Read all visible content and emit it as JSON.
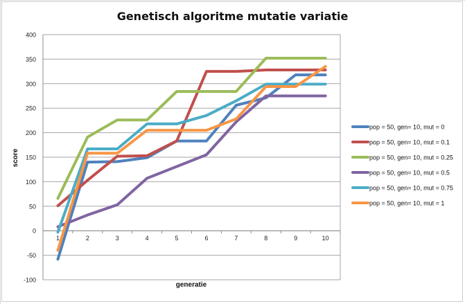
{
  "chart_data": {
    "type": "line",
    "title": "Genetisch algoritme mutatie variatie",
    "xlabel": "generatie",
    "ylabel": "score",
    "x": [
      "1",
      "2",
      "3",
      "4",
      "5",
      "6",
      "7",
      "8",
      "9",
      "10"
    ],
    "ylim": [
      -100,
      400
    ],
    "yticks": [
      -100,
      -50,
      0,
      50,
      100,
      150,
      200,
      250,
      300,
      350,
      400
    ],
    "grid": true,
    "legend_position": "right",
    "series": [
      {
        "name": "pop = 50, gen= 10, mut = 0",
        "color": "#4f81bd",
        "values": [
          -58,
          140,
          141,
          149,
          183,
          183,
          256,
          271,
          318,
          318
        ]
      },
      {
        "name": "pop = 50, gen= 10, mut = 0.1",
        "color": "#c0504d",
        "values": [
          51,
          103,
          152,
          153,
          183,
          325,
          325,
          328,
          328,
          328
        ]
      },
      {
        "name": "pop = 50, gen= 10, mut = 0.25",
        "color": "#9bbb59",
        "values": [
          66,
          191,
          226,
          226,
          284,
          284,
          284,
          352,
          352,
          352
        ]
      },
      {
        "name": "pop = 50, gen= 10, mut = 0.5",
        "color": "#8064a2",
        "values": [
          8,
          32,
          53,
          107,
          131,
          155,
          222,
          275,
          275,
          275
        ]
      },
      {
        "name": "pop = 50, gen= 10, mut = 0.75",
        "color": "#4bacc6",
        "values": [
          -3,
          167,
          167,
          218,
          218,
          235,
          265,
          299,
          299,
          299
        ]
      },
      {
        "name": "pop = 50, gen= 10, mut = 1",
        "color": "#f79646",
        "values": [
          -40,
          158,
          158,
          205,
          205,
          205,
          228,
          294,
          294,
          335
        ]
      }
    ]
  }
}
